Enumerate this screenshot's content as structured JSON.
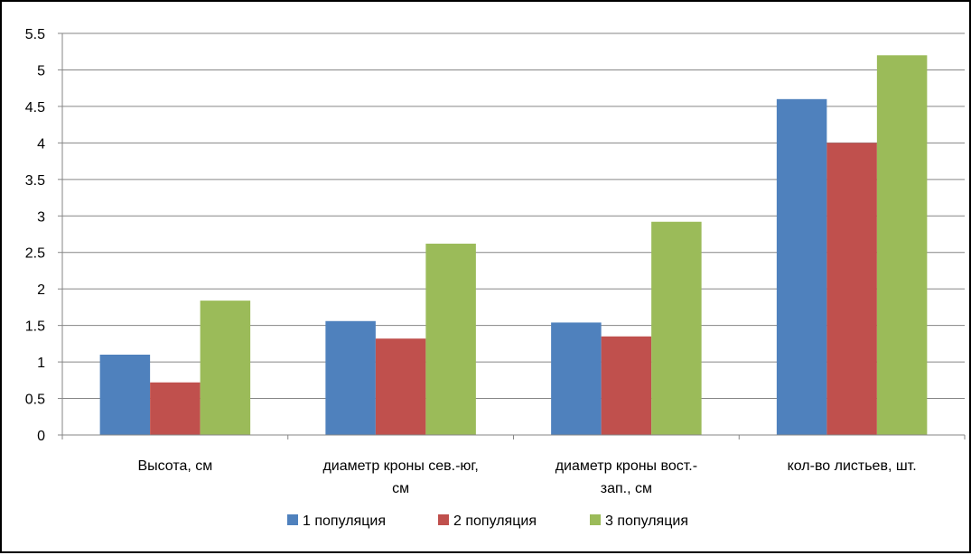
{
  "chart_data": {
    "type": "bar",
    "title": "",
    "xlabel": "",
    "ylabel": "",
    "categories": [
      [
        "Высота, см"
      ],
      [
        "диаметр кроны сев.-юг,",
        "см"
      ],
      [
        "диаметр кроны вост.-",
        "зап., см"
      ],
      [
        "кол-во листьев, шт."
      ]
    ],
    "series": [
      {
        "name": "1 популяция",
        "color": "#4F81BD",
        "values": [
          1.1,
          1.56,
          1.54,
          4.6
        ]
      },
      {
        "name": "2 популяция",
        "color": "#C0504D",
        "values": [
          0.72,
          1.32,
          1.35,
          4.0
        ]
      },
      {
        "name": "3 популяция",
        "color": "#9BBB59",
        "values": [
          1.84,
          2.62,
          2.92,
          5.2
        ]
      }
    ],
    "ylim": [
      0,
      5.5
    ],
    "yticks": [
      "0",
      "0.5",
      "1",
      "1.5",
      "2",
      "2.5",
      "3",
      "3.5",
      "4",
      "4.5",
      "5",
      "5.5"
    ],
    "grid": true,
    "legend_position": "bottom"
  }
}
